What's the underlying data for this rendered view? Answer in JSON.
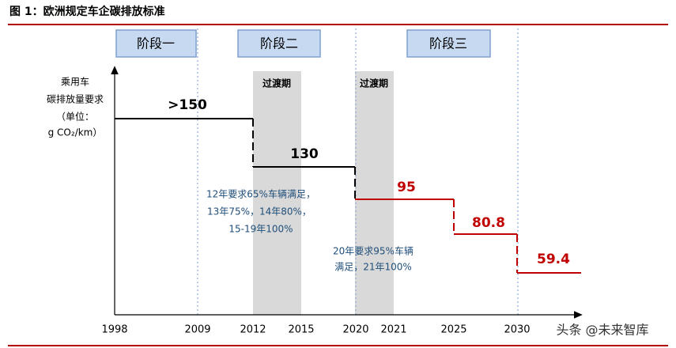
{
  "header": {
    "title": "图 1：欧洲规定车企碳排放标准"
  },
  "phases": [
    "阶段一",
    "阶段二",
    "阶段三"
  ],
  "transitions": [
    "过渡期",
    "过渡期"
  ],
  "y_axis_label": [
    "乘用车",
    "碳排放量要求",
    "（单位：",
    "g CO₂/km）"
  ],
  "x_labels": [
    "1998",
    "2009",
    "2012",
    "2015",
    "2020",
    "2021",
    "2025",
    "2030"
  ],
  "steps": [
    ">150",
    "130",
    "95",
    "80.8",
    "59.4"
  ],
  "notes": [
    [
      "12年要求65%车辆满足，",
      "13年75%，14年80%，",
      "15-19年100%"
    ],
    [
      "20年要求95%车辆",
      "满足，21年100%"
    ]
  ],
  "watermark": "头条 @未来智库"
}
